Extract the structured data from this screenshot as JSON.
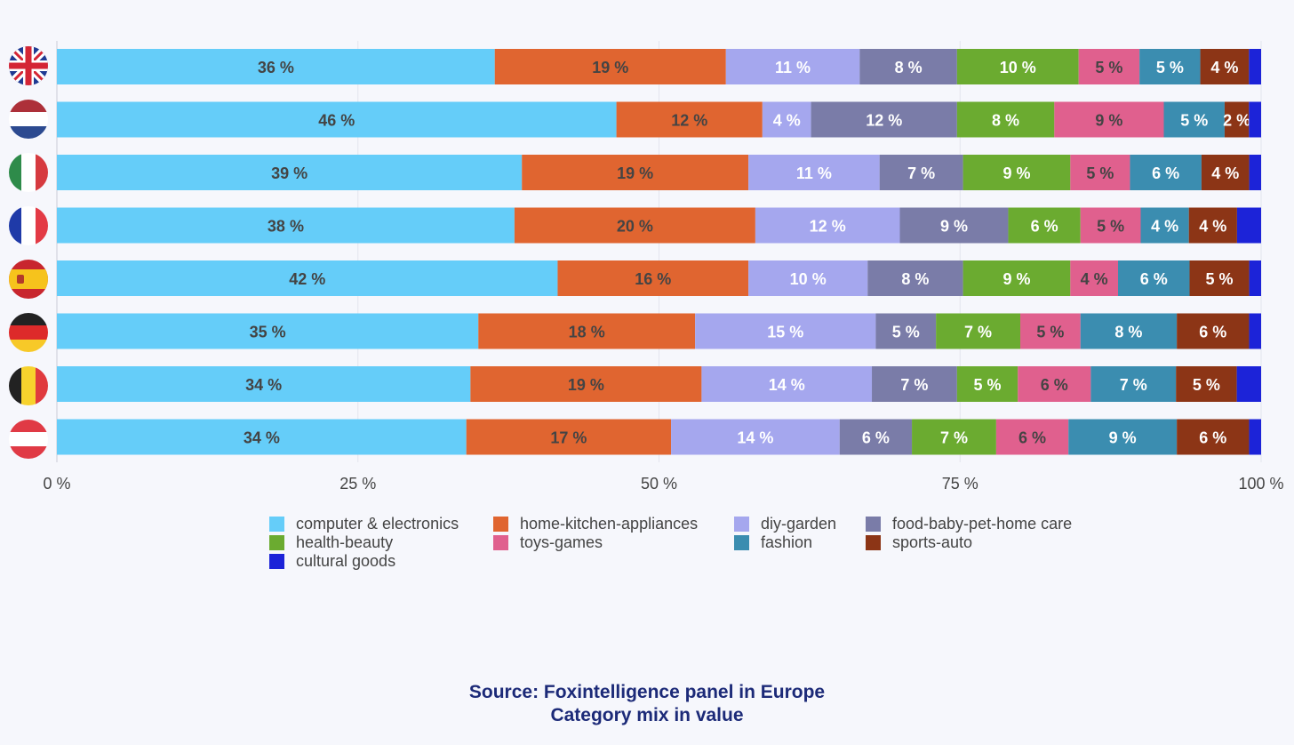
{
  "chart_data": {
    "type": "bar",
    "orientation": "horizontal",
    "stacked": true,
    "percent": true,
    "categories": [
      "United Kingdom",
      "Netherlands",
      "Italy",
      "France",
      "Spain",
      "Germany",
      "Belgium",
      "Austria"
    ],
    "category_icons": [
      "flag-uk-icon",
      "flag-netherlands-icon",
      "flag-italy-icon",
      "flag-france-icon",
      "flag-spain-icon",
      "flag-germany-icon",
      "flag-belgium-icon",
      "flag-austria-icon"
    ],
    "series": [
      {
        "name": "computer & electronics",
        "color": "#65cdf9",
        "label_color": "#444444",
        "values": [
          36,
          46,
          39,
          38,
          42,
          35,
          34,
          34
        ]
      },
      {
        "name": "home-kitchen-appliances",
        "color": "#e06530",
        "label_color": "#444444",
        "values": [
          19,
          12,
          19,
          20,
          16,
          18,
          19,
          17
        ]
      },
      {
        "name": "diy-garden",
        "color": "#a5a7ee",
        "label_color": "#ffffff",
        "values": [
          11,
          4,
          11,
          12,
          10,
          15,
          14,
          14
        ]
      },
      {
        "name": "food-baby-pet-home care",
        "color": "#7a7ca8",
        "label_color": "#ffffff",
        "values": [
          8,
          12,
          7,
          9,
          8,
          5,
          7,
          6
        ]
      },
      {
        "name": "health-beauty",
        "color": "#6bab30",
        "label_color": "#ffffff",
        "values": [
          10,
          8,
          9,
          6,
          9,
          7,
          5,
          7
        ]
      },
      {
        "name": "toys-games",
        "color": "#e0608e",
        "label_color": "#444444",
        "values": [
          5,
          9,
          5,
          5,
          4,
          5,
          6,
          6
        ]
      },
      {
        "name": "fashion",
        "color": "#3b8db0",
        "label_color": "#ffffff",
        "values": [
          5,
          5,
          6,
          4,
          6,
          8,
          7,
          9
        ]
      },
      {
        "name": "sports-auto",
        "color": "#8c3516",
        "label_color": "#ffffff",
        "values": [
          4,
          2,
          4,
          4,
          5,
          6,
          5,
          6
        ]
      },
      {
        "name": "cultural goods",
        "color": "#1c23d8",
        "label_color": "#ffffff",
        "values": [
          1,
          1,
          1,
          2,
          1,
          1,
          2,
          1
        ]
      }
    ],
    "value_suffix": " %",
    "hidden_label_series": [
      "cultural goods"
    ],
    "xlim": [
      0,
      100
    ],
    "xticks": [
      0,
      25,
      50,
      75,
      100
    ],
    "xtick_labels": [
      "0 %",
      "25 %",
      "50 %",
      "75 %",
      "100 %"
    ],
    "grid": true,
    "legend_position": "bottom"
  },
  "source": {
    "line1": "Source: Foxintelligence panel in Europe",
    "line2": "Category mix in value"
  }
}
